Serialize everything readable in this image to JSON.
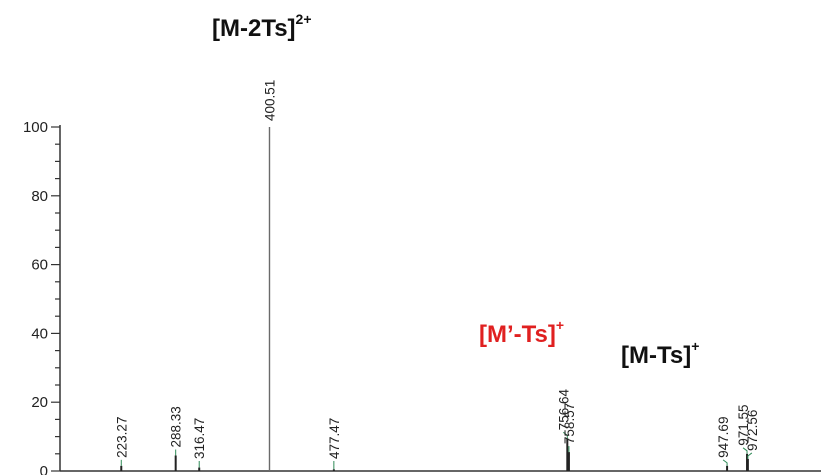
{
  "chart_data": {
    "type": "bar",
    "title": "",
    "xlabel": "",
    "ylabel": "",
    "ylim": [
      0,
      100
    ],
    "xlim": [
      150,
      1060
    ],
    "yticks": [
      "0",
      "20",
      "40",
      "60",
      "80",
      "100"
    ],
    "peaks": [
      {
        "mz": 223.27,
        "label": "223.27",
        "intensity": 1.5
      },
      {
        "mz": 288.33,
        "label": "288.33",
        "intensity": 4.5
      },
      {
        "mz": 316.47,
        "label": "316.47",
        "intensity": 1.0
      },
      {
        "mz": 400.51,
        "label": "400.51",
        "intensity": 100
      },
      {
        "mz": 477.47,
        "label": "477.47",
        "intensity": 0.5
      },
      {
        "mz": 756.64,
        "label": "756.64",
        "intensity": 9.5
      },
      {
        "mz": 758.57,
        "label": "758.57",
        "intensity": 5.5
      },
      {
        "mz": 947.69,
        "label": "947.69",
        "intensity": 1.5
      },
      {
        "mz": 971.55,
        "label": "971.55",
        "intensity": 5.0
      },
      {
        "mz": 972.56,
        "label": "972.56",
        "intensity": 3.5
      }
    ],
    "colors": {
      "axis": "#333333",
      "peak": "#555555",
      "label_leader": "#2e8b57",
      "highlight": "#e02020",
      "text": "#111111"
    }
  },
  "annotations": {
    "m2ts": {
      "base": "[M-2Ts]",
      "charge": "2+"
    },
    "mprime_ts": {
      "base": "[M’-Ts]",
      "charge": "+"
    },
    "m_ts": {
      "base": "[M-Ts]",
      "charge": "+"
    }
  }
}
